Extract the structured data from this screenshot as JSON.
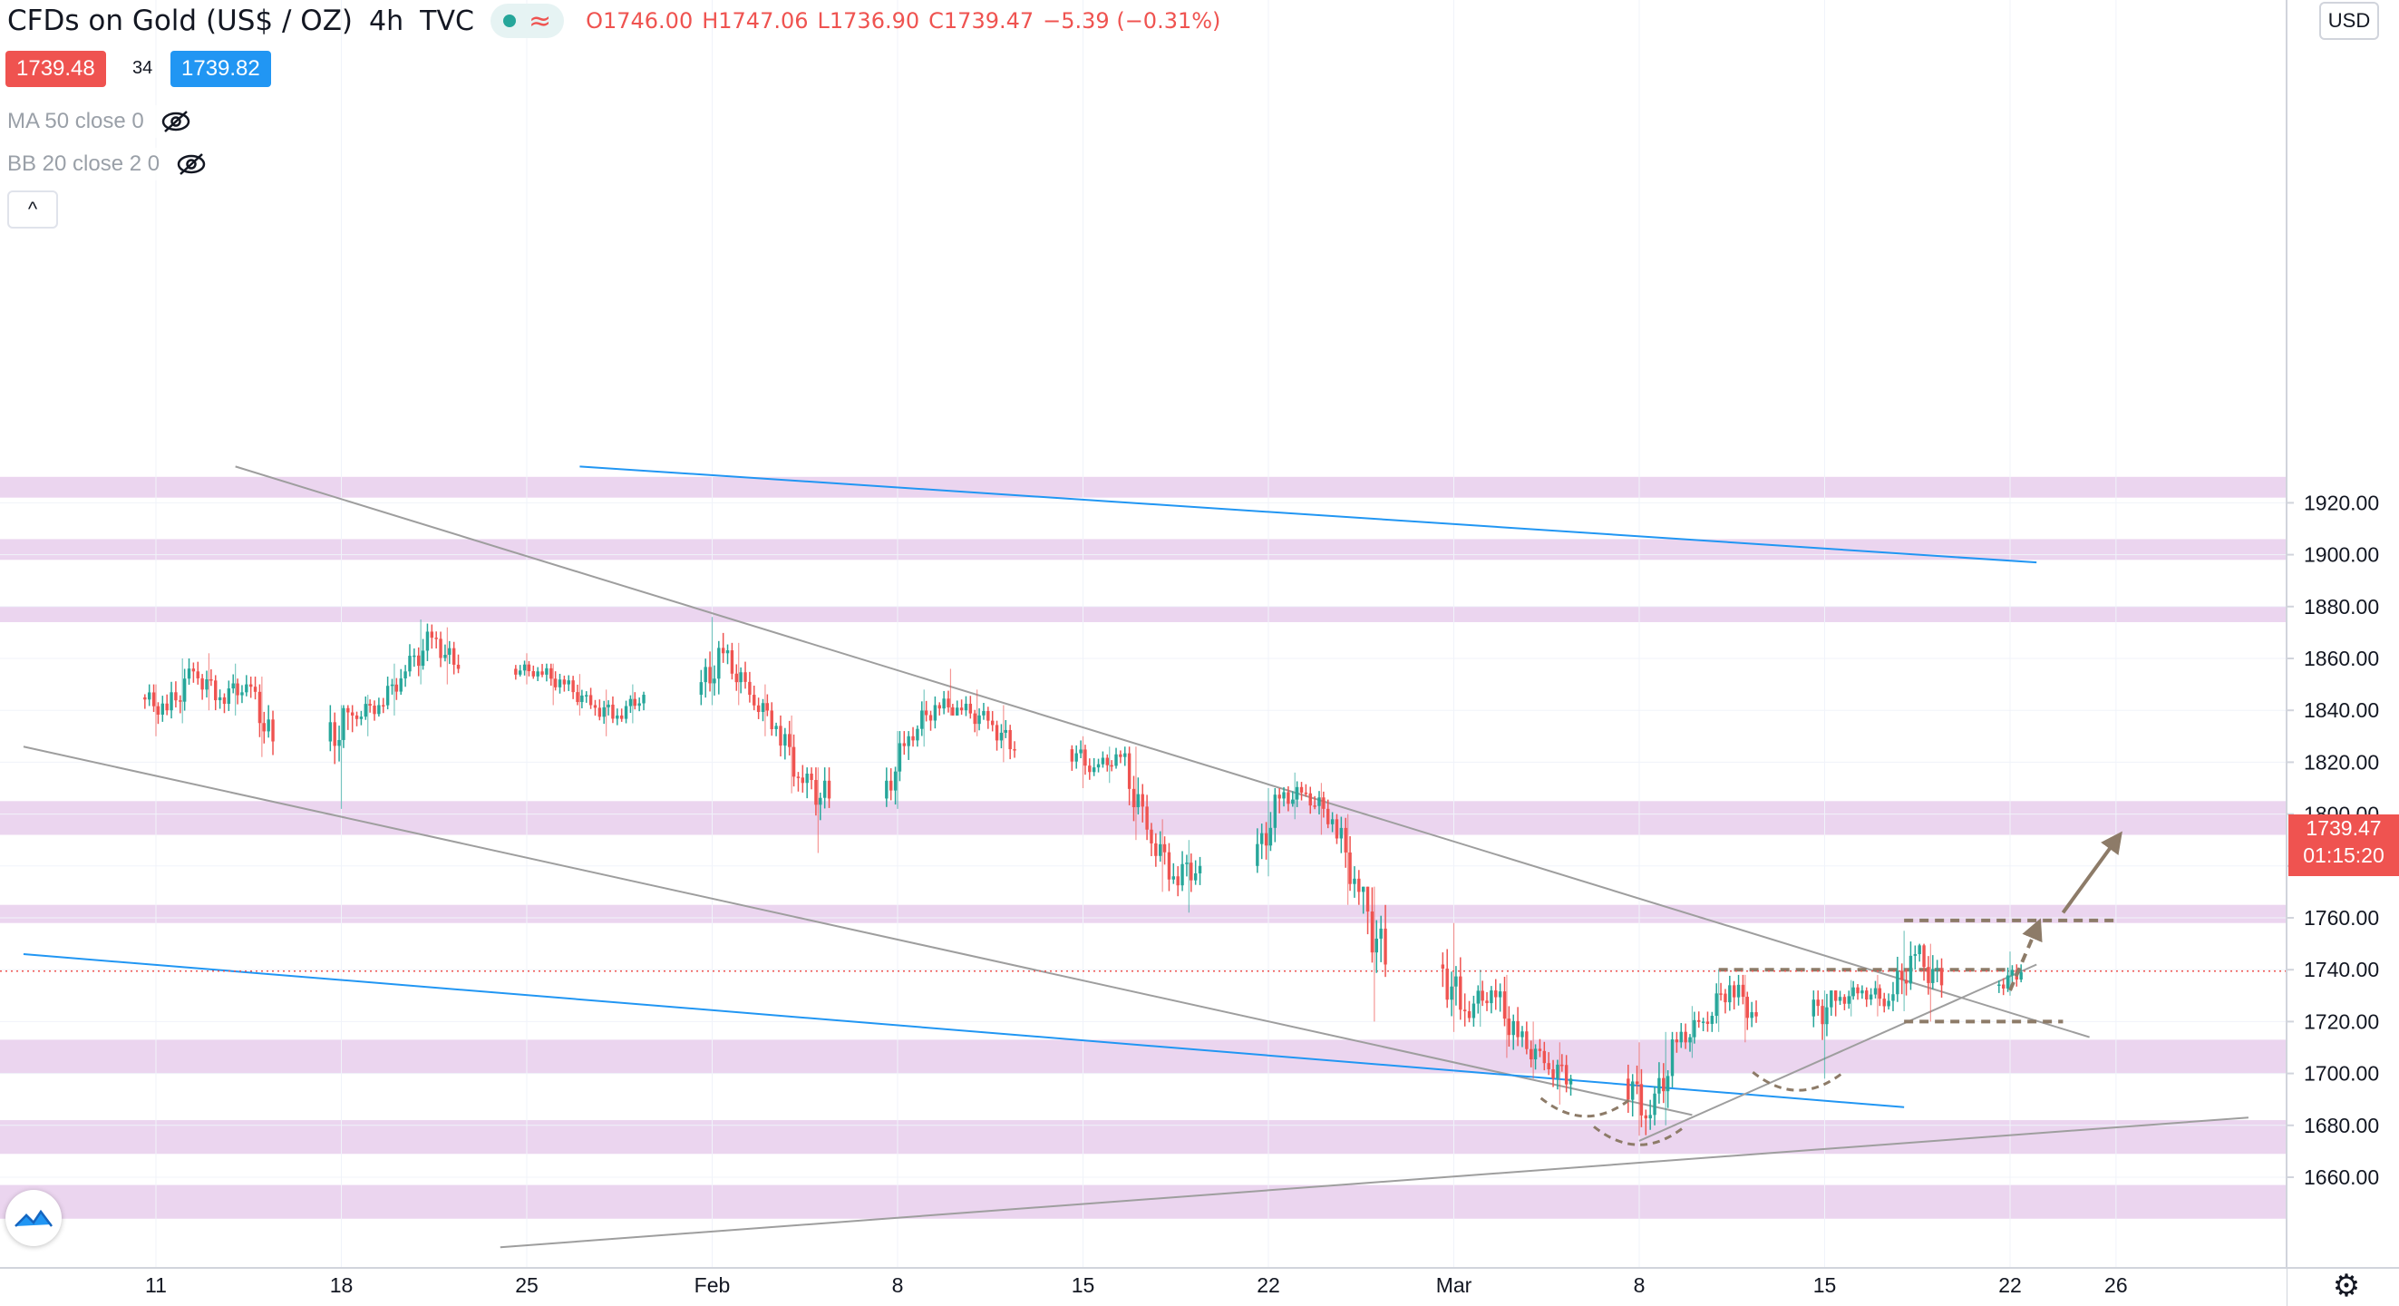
{
  "header": {
    "symbol": "CFDs on Gold (US$ / OZ)",
    "interval": "4h",
    "source": "TVC",
    "wave_glyph": "≈",
    "ohlc": {
      "o": "O1746.00",
      "h": "H1747.06",
      "l": "L1736.90",
      "c": "C1739.47",
      "chg": "−5.39 (−0.31%)"
    }
  },
  "quote": {
    "bid": "1739.48",
    "spread": "34",
    "ask": "1739.82"
  },
  "indicators": [
    {
      "label": "MA 50 close 0",
      "icon": "eye-off-icon"
    },
    {
      "label": "BB 20 close 2 0",
      "icon": "eye-off-icon"
    }
  ],
  "axis": {
    "currency": "USD"
  },
  "price_label": {
    "price": "1739.47",
    "countdown": "01:15:20"
  },
  "colors": {
    "up": "#26a69a",
    "down": "#ef5350",
    "zone": "#e1bee7",
    "trend": "#9e9e9e",
    "channel_blue": "#2196f3",
    "annotation": "#8d7b68",
    "bg": "#ffffff"
  },
  "chart_data": {
    "type": "candlestick",
    "title": "",
    "xlabel": "",
    "ylabel": "",
    "ylim": [
      1640,
      1930
    ],
    "y_ticks": [
      1660,
      1680,
      1700,
      1720,
      1740,
      1760,
      1780,
      1800,
      1820,
      1840,
      1860,
      1880,
      1900,
      1920
    ],
    "x_ticks": [
      {
        "label": "11",
        "date": "2021-01-11"
      },
      {
        "label": "18",
        "date": "2021-01-18"
      },
      {
        "label": "25",
        "date": "2021-01-25"
      },
      {
        "label": "Feb",
        "date": "2021-02-01"
      },
      {
        "label": "8",
        "date": "2021-02-08"
      },
      {
        "label": "15",
        "date": "2021-02-15"
      },
      {
        "label": "22",
        "date": "2021-02-22"
      },
      {
        "label": "Mar",
        "date": "2021-03-01"
      },
      {
        "label": "8",
        "date": "2021-03-08"
      },
      {
        "label": "15",
        "date": "2021-03-15"
      },
      {
        "label": "22",
        "date": "2021-03-22"
      },
      {
        "label": "26",
        "date": "2021-03-26"
      }
    ],
    "zones": [
      {
        "from": 1922,
        "to": 1930
      },
      {
        "from": 1898,
        "to": 1906
      },
      {
        "from": 1874,
        "to": 1880
      },
      {
        "from": 1792,
        "to": 1805
      },
      {
        "from": 1758,
        "to": 1765
      },
      {
        "from": 1700,
        "to": 1713
      },
      {
        "from": 1669,
        "to": 1682
      },
      {
        "from": 1644,
        "to": 1657
      }
    ],
    "candles": [
      [
        "2021-01-11",
        1845,
        1850,
        1830,
        1840
      ],
      [
        "2021-01-12",
        1840,
        1860,
        1835,
        1855
      ],
      [
        "2021-01-13",
        1855,
        1862,
        1840,
        1845
      ],
      [
        "2021-01-14",
        1845,
        1858,
        1838,
        1850
      ],
      [
        "2021-01-15",
        1850,
        1853,
        1822,
        1828
      ],
      [
        "2021-01-18",
        1828,
        1842,
        1802,
        1838
      ],
      [
        "2021-01-19",
        1838,
        1846,
        1830,
        1842
      ],
      [
        "2021-01-20",
        1842,
        1858,
        1838,
        1855
      ],
      [
        "2021-01-21",
        1855,
        1875,
        1850,
        1868
      ],
      [
        "2021-01-22",
        1868,
        1872,
        1850,
        1856
      ],
      [
        "2021-01-25",
        1856,
        1862,
        1850,
        1855
      ],
      [
        "2021-01-26",
        1855,
        1858,
        1842,
        1850
      ],
      [
        "2021-01-27",
        1850,
        1854,
        1838,
        1842
      ],
      [
        "2021-01-28",
        1842,
        1848,
        1830,
        1838
      ],
      [
        "2021-01-29",
        1838,
        1850,
        1835,
        1846
      ],
      [
        "2021-02-01",
        1846,
        1876,
        1842,
        1862
      ],
      [
        "2021-02-02",
        1862,
        1866,
        1842,
        1846
      ],
      [
        "2021-02-03",
        1846,
        1850,
        1830,
        1834
      ],
      [
        "2021-02-04",
        1834,
        1838,
        1808,
        1812
      ],
      [
        "2021-02-05",
        1812,
        1818,
        1785,
        1806
      ],
      [
        "2021-02-08",
        1806,
        1832,
        1802,
        1830
      ],
      [
        "2021-02-09",
        1830,
        1848,
        1826,
        1842
      ],
      [
        "2021-02-10",
        1842,
        1856,
        1838,
        1840
      ],
      [
        "2021-02-11",
        1840,
        1848,
        1830,
        1836
      ],
      [
        "2021-02-12",
        1836,
        1842,
        1820,
        1825
      ],
      [
        "2021-02-15",
        1825,
        1830,
        1810,
        1818
      ],
      [
        "2021-02-16",
        1818,
        1826,
        1812,
        1822
      ],
      [
        "2021-02-17",
        1822,
        1826,
        1790,
        1794
      ],
      [
        "2021-02-18",
        1794,
        1798,
        1770,
        1776
      ],
      [
        "2021-02-19",
        1776,
        1790,
        1762,
        1780
      ],
      [
        "2021-02-22",
        1780,
        1810,
        1776,
        1806
      ],
      [
        "2021-02-23",
        1806,
        1816,
        1798,
        1808
      ],
      [
        "2021-02-24",
        1808,
        1812,
        1792,
        1798
      ],
      [
        "2021-02-25",
        1798,
        1800,
        1765,
        1770
      ],
      [
        "2021-02-26",
        1770,
        1772,
        1720,
        1742
      ],
      [
        "2021-03-01",
        1742,
        1758,
        1716,
        1724
      ],
      [
        "2021-03-02",
        1724,
        1740,
        1718,
        1732
      ],
      [
        "2021-03-03",
        1732,
        1738,
        1706,
        1714
      ],
      [
        "2021-03-04",
        1714,
        1720,
        1698,
        1704
      ],
      [
        "2021-03-05",
        1704,
        1712,
        1688,
        1698
      ],
      [
        "2021-03-08",
        1698,
        1712,
        1676,
        1684
      ],
      [
        "2021-03-09",
        1684,
        1716,
        1680,
        1712
      ],
      [
        "2021-03-10",
        1712,
        1726,
        1706,
        1720
      ],
      [
        "2021-03-11",
        1720,
        1740,
        1716,
        1734
      ],
      [
        "2021-03-12",
        1734,
        1738,
        1712,
        1722
      ],
      [
        "2021-03-15",
        1722,
        1732,
        1698,
        1728
      ],
      [
        "2021-03-16",
        1728,
        1736,
        1722,
        1732
      ],
      [
        "2021-03-17",
        1732,
        1738,
        1722,
        1728
      ],
      [
        "2021-03-18",
        1728,
        1755,
        1724,
        1746
      ],
      [
        "2021-03-19",
        1746,
        1750,
        1720,
        1734
      ],
      [
        "2021-03-22",
        1734,
        1747,
        1730,
        1739
      ]
    ],
    "last_price": 1739.47,
    "lines": [
      {
        "kind": "trend",
        "from": [
          "2021-01-14",
          1934
        ],
        "to": [
          "2021-03-25",
          1714
        ]
      },
      {
        "kind": "trend",
        "from": [
          "2021-01-06",
          1826
        ],
        "to": [
          "2021-03-10",
          1684
        ]
      },
      {
        "kind": "blue",
        "from": [
          "2021-01-06",
          1746
        ],
        "to": [
          "2021-03-18",
          1687
        ]
      },
      {
        "kind": "blue",
        "from": [
          "2021-01-27",
          1934
        ],
        "to": [
          "2021-03-23",
          1897
        ]
      },
      {
        "kind": "trend",
        "from": [
          "2021-03-08",
          1674
        ],
        "to": [
          "2021-03-23",
          1742
        ]
      },
      {
        "kind": "trend",
        "from": [
          "2021-01-24",
          1633
        ],
        "to": [
          "2021-03-31",
          1683
        ]
      },
      {
        "kind": "dashed",
        "from": [
          "2021-03-11",
          1740
        ],
        "to": [
          "2021-03-22",
          1740
        ]
      },
      {
        "kind": "dashed",
        "from": [
          "2021-03-18",
          1759
        ],
        "to": [
          "2021-03-26",
          1759
        ]
      },
      {
        "kind": "dashed",
        "from": [
          "2021-03-18",
          1720
        ],
        "to": [
          "2021-03-24",
          1720
        ]
      }
    ],
    "arrows": [
      {
        "kind": "solid",
        "from": [
          "2021-03-24",
          1762
        ],
        "to": [
          "2021-03-26",
          1790
        ]
      },
      {
        "kind": "dashed",
        "from": [
          "2021-03-22",
          1732
        ],
        "to": [
          "2021-03-23",
          1756
        ]
      }
    ],
    "arcs": [
      {
        "date": "2021-03-06",
        "price": 1687
      },
      {
        "date": "2021-03-08",
        "price": 1676
      },
      {
        "date": "2021-03-14",
        "price": 1697
      }
    ]
  }
}
